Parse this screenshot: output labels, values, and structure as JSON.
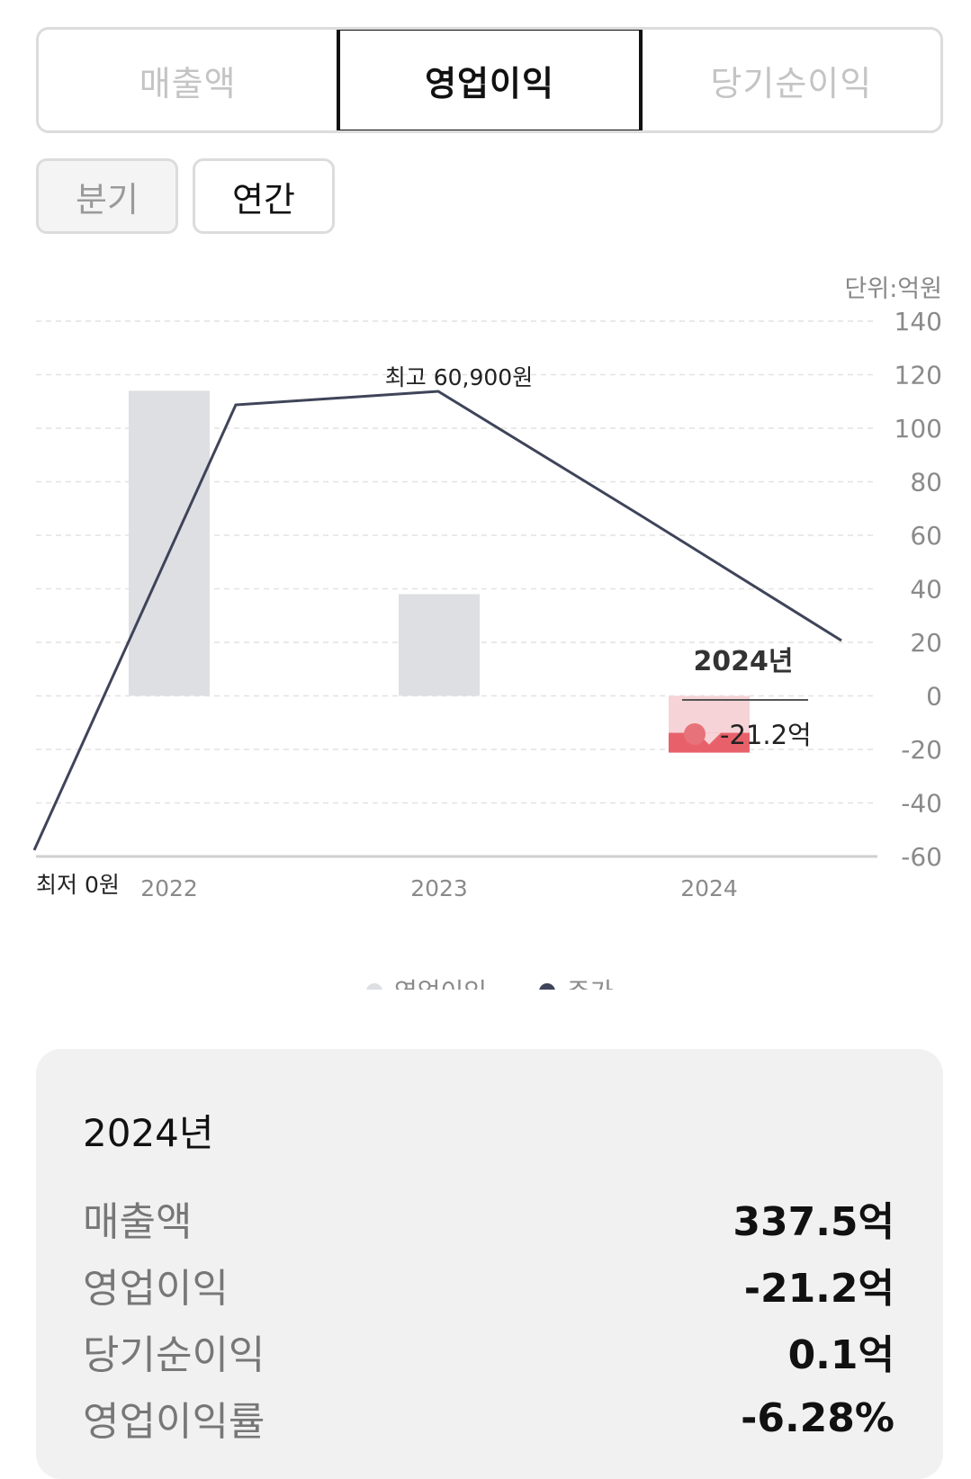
{
  "tabs": [
    {
      "label": "매출액",
      "active": false
    },
    {
      "label": "영업이익",
      "active": true
    },
    {
      "label": "당기순이익",
      "active": false
    }
  ],
  "period": [
    {
      "label": "분기",
      "active": false
    },
    {
      "label": "연간",
      "active": true
    }
  ],
  "chart_data": {
    "type": "bar",
    "unit_label": "단위:억원",
    "categories": [
      "2022",
      "2023",
      "2024"
    ],
    "ylim": [
      -60,
      140
    ],
    "yticks": [
      140,
      120,
      100,
      80,
      60,
      40,
      20,
      0,
      -20,
      -40,
      -60
    ],
    "grid": true,
    "series": [
      {
        "name": "영업이익",
        "kind": "bar",
        "values": [
          114,
          38,
          -21.2
        ],
        "color": "#dedfe3",
        "highlight_color": "#e8616a"
      },
      {
        "name": "주가",
        "kind": "line",
        "color": "#3f4459"
      }
    ],
    "annotations": {
      "high": "최고 60,900원",
      "low": "최저 0원"
    },
    "tooltip": {
      "year": "2024년",
      "value": "-21.2억",
      "dot_color": "#e8727a"
    },
    "legend_position": "bottom-center"
  },
  "summary": {
    "year": "2024년",
    "rows": [
      {
        "label": "매출액",
        "value": "337.5억"
      },
      {
        "label": "영업이익",
        "value": "-21.2억"
      },
      {
        "label": "당기순이익",
        "value": "0.1억"
      },
      {
        "label": "영업이익률",
        "value": "-6.28%"
      }
    ]
  }
}
